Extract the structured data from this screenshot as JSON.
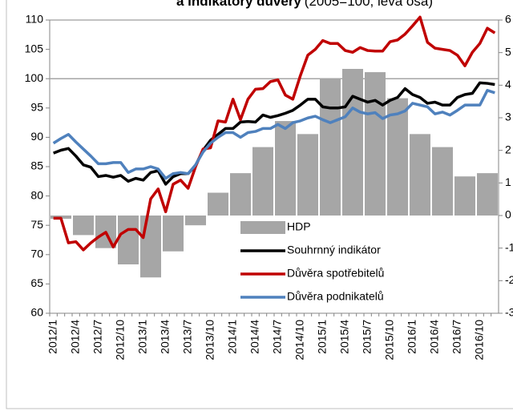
{
  "chart_data": {
    "type": "combo",
    "title": "a indikátory důvěry",
    "title_note": "(2005=100, levá osa)",
    "categories": [
      "2012/1",
      null,
      null,
      "2012/4",
      null,
      null,
      "2012/7",
      null,
      null,
      "2012/10",
      null,
      null,
      "2013/1",
      null,
      null,
      "2013/4",
      null,
      null,
      "2013/7",
      null,
      null,
      "2013/10",
      null,
      null,
      "2014/1",
      null,
      null,
      "2014/4",
      null,
      null,
      "2014/7",
      null,
      null,
      "2014/10",
      null,
      null,
      "2015/1",
      null,
      null,
      "2015/4",
      null,
      null,
      "2015/7",
      null,
      null,
      "2015/10",
      null,
      null,
      "2016/1",
      null,
      null,
      "2016/4",
      null,
      null,
      "2016/7",
      null,
      null,
      "2016/10",
      null,
      null
    ],
    "ylim": [
      60,
      110
    ],
    "yticks": [
      60,
      65,
      70,
      75,
      80,
      85,
      90,
      95,
      100,
      105,
      110
    ],
    "y2lim": [
      -3,
      6
    ],
    "y2ticks": [
      -3,
      -2,
      -1,
      0,
      1,
      2,
      3,
      4,
      5,
      6
    ],
    "reference_line": 100,
    "legend": "bottom-center",
    "series": [
      {
        "name": "HDP",
        "type": "bar",
        "axis": "y2",
        "color": "#a6a6a6",
        "values": [
          null,
          -0.1,
          null,
          null,
          -0.6,
          null,
          null,
          -1.0,
          null,
          null,
          -1.5,
          null,
          null,
          -1.9,
          null,
          null,
          -1.1,
          null,
          null,
          -0.3,
          null,
          null,
          0.7,
          null,
          null,
          1.3,
          null,
          null,
          2.1,
          null,
          null,
          2.9,
          null,
          null,
          2.5,
          null,
          null,
          4.2,
          null,
          null,
          4.5,
          null,
          null,
          4.4,
          null,
          null,
          3.6,
          null,
          null,
          2.5,
          null,
          null,
          2.1,
          null,
          null,
          1.2,
          null,
          null,
          1.3,
          null
        ]
      },
      {
        "name": "Souhrnný indikátor",
        "type": "line",
        "color": "#000000",
        "values": [
          87.3,
          87.8,
          88.1,
          86.8,
          85.3,
          84.9,
          83.3,
          83.5,
          83.2,
          83.5,
          82.5,
          83.0,
          82.7,
          84.0,
          84.3,
          82.0,
          83.3,
          83.8,
          83.8,
          85.2,
          87.8,
          89.5,
          90.5,
          91.5,
          91.5,
          92.6,
          92.7,
          92.6,
          93.8,
          93.4,
          93.7,
          94.1,
          94.6,
          95.5,
          96.5,
          96.5,
          95.2,
          95.0,
          95.0,
          95.2,
          97.0,
          96.5,
          96.0,
          96.3,
          95.5,
          96.3,
          96.8,
          98.3,
          97.3,
          96.8,
          95.8,
          96.0,
          95.5,
          95.5,
          96.8,
          97.3,
          97.5,
          99.3,
          99.2,
          99.0
        ]
      },
      {
        "name": "Důvěra spotřebitelů",
        "type": "line",
        "color": "#c00000",
        "values": [
          76.2,
          76.2,
          72.0,
          72.2,
          70.8,
          72.0,
          73.0,
          73.8,
          71.3,
          73.5,
          74.3,
          74.3,
          72.9,
          79.5,
          81.2,
          77.3,
          82.0,
          82.7,
          81.3,
          85.0,
          88.0,
          88.2,
          92.8,
          92.6,
          96.5,
          93.0,
          96.5,
          98.2,
          98.3,
          99.5,
          99.8,
          97.2,
          96.5,
          100.5,
          104.0,
          105.0,
          106.5,
          106.0,
          106.0,
          104.8,
          104.5,
          105.3,
          104.8,
          104.7,
          104.7,
          106.3,
          106.6,
          107.6,
          109.0,
          110.5,
          106.2,
          105.2,
          105.0,
          104.8,
          104.0,
          102.2,
          104.5,
          106.0,
          108.6,
          107.8
        ]
      },
      {
        "name": "Důvěra podnikatelů",
        "type": "line",
        "color": "#4f81bd",
        "values": [
          89.0,
          89.8,
          90.5,
          89.2,
          88.0,
          86.8,
          85.5,
          85.5,
          85.7,
          85.7,
          84.0,
          84.6,
          84.6,
          85.0,
          84.6,
          83.0,
          83.8,
          84.0,
          83.8,
          85.3,
          87.5,
          89.0,
          90.0,
          90.8,
          90.8,
          90.0,
          90.8,
          91.0,
          91.5,
          91.5,
          92.2,
          91.5,
          92.5,
          92.8,
          93.3,
          93.6,
          93.0,
          92.5,
          93.0,
          93.5,
          95.0,
          94.3,
          94.0,
          94.2,
          93.2,
          93.8,
          94.0,
          94.5,
          95.8,
          95.5,
          95.2,
          94.0,
          94.3,
          93.8,
          94.6,
          95.5,
          95.5,
          95.5,
          98.0,
          97.6
        ]
      }
    ]
  }
}
